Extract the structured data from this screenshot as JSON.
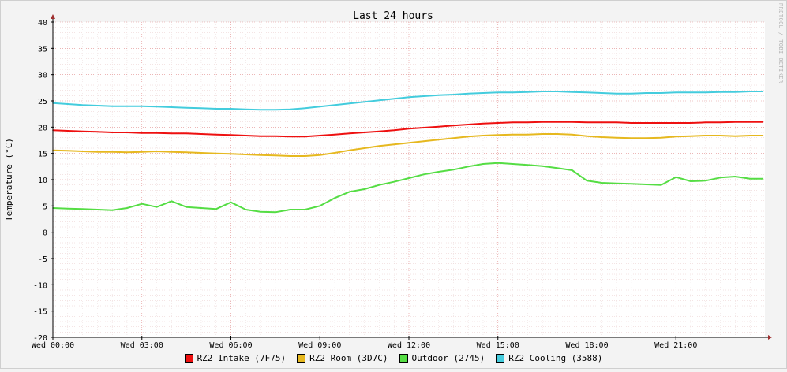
{
  "chart_data": {
    "type": "line",
    "title": "Last 24 hours",
    "ylabel": "Temperature (°C)",
    "xlabel": "",
    "watermark": "RRDTOOL / TOBI OETIKER",
    "ylim": [
      -20,
      40
    ],
    "y_ticks": [
      40,
      35,
      30,
      25,
      20,
      15,
      10,
      5,
      0,
      -5,
      -10,
      -15,
      -20
    ],
    "x_range_hours": [
      0,
      24
    ],
    "x_ticks": [
      {
        "label": "Wed 00:00",
        "hour": 0
      },
      {
        "label": "Wed 03:00",
        "hour": 3
      },
      {
        "label": "Wed 06:00",
        "hour": 6
      },
      {
        "label": "Wed 09:00",
        "hour": 9
      },
      {
        "label": "Wed 12:00",
        "hour": 12
      },
      {
        "label": "Wed 15:00",
        "hour": 15
      },
      {
        "label": "Wed 18:00",
        "hour": 18
      },
      {
        "label": "Wed 21:00",
        "hour": 21
      }
    ],
    "grid": true,
    "legend_position": "bottom",
    "x": [
      0,
      0.5,
      1,
      1.5,
      2,
      2.5,
      3,
      3.5,
      4,
      4.5,
      5,
      5.5,
      6,
      6.5,
      7,
      7.5,
      8,
      8.5,
      9,
      9.5,
      10,
      10.5,
      11,
      11.5,
      12,
      12.5,
      13,
      13.5,
      14,
      14.5,
      15,
      15.5,
      16,
      16.5,
      17,
      17.5,
      18,
      18.5,
      19,
      19.5,
      20,
      20.5,
      21,
      21.5,
      22,
      22.5,
      23,
      23.5
    ],
    "series": [
      {
        "name": "RZ2 Intake (7F75)",
        "color": "#ee1010",
        "values": [
          19.4,
          19.3,
          19.2,
          19.1,
          19.0,
          19.0,
          18.9,
          18.9,
          18.8,
          18.8,
          18.7,
          18.6,
          18.5,
          18.4,
          18.3,
          18.3,
          18.2,
          18.2,
          18.4,
          18.6,
          18.8,
          19.0,
          19.2,
          19.4,
          19.7,
          19.9,
          20.1,
          20.3,
          20.5,
          20.7,
          20.8,
          20.9,
          20.9,
          21.0,
          21.0,
          21.0,
          20.9,
          20.9,
          20.9,
          20.8,
          20.8,
          20.8,
          20.8,
          20.8,
          20.9,
          20.9,
          21.0,
          21.0
        ]
      },
      {
        "name": "RZ2 Room (3D7C)",
        "color": "#e6b81f",
        "values": [
          15.6,
          15.5,
          15.4,
          15.3,
          15.3,
          15.2,
          15.3,
          15.4,
          15.3,
          15.2,
          15.1,
          15.0,
          14.9,
          14.8,
          14.7,
          14.6,
          14.5,
          14.5,
          14.7,
          15.1,
          15.6,
          16.0,
          16.4,
          16.7,
          17.0,
          17.3,
          17.6,
          17.9,
          18.2,
          18.4,
          18.5,
          18.6,
          18.6,
          18.7,
          18.7,
          18.6,
          18.3,
          18.1,
          18.0,
          17.9,
          17.9,
          18.0,
          18.2,
          18.3,
          18.4,
          18.4,
          18.3,
          18.4
        ]
      },
      {
        "name": "Outdoor (2745)",
        "color": "#55dd44",
        "values": [
          4.6,
          4.5,
          4.4,
          4.3,
          4.2,
          4.6,
          5.4,
          4.8,
          5.9,
          4.8,
          4.6,
          4.4,
          5.7,
          4.3,
          3.9,
          3.8,
          4.3,
          4.3,
          5.0,
          6.5,
          7.7,
          8.2,
          9.0,
          9.6,
          10.3,
          11.0,
          11.5,
          11.9,
          12.5,
          13.0,
          13.2,
          13.0,
          12.8,
          12.6,
          12.2,
          11.8,
          9.8,
          9.4,
          9.3,
          9.2,
          9.1,
          9.0,
          10.5,
          9.7,
          9.8,
          10.4,
          10.6,
          10.2
        ]
      },
      {
        "name": "RZ2 Cooling (3588)",
        "color": "#44ccdd",
        "values": [
          24.6,
          24.4,
          24.2,
          24.1,
          24.0,
          24.0,
          24.0,
          23.9,
          23.8,
          23.7,
          23.6,
          23.5,
          23.5,
          23.4,
          23.3,
          23.3,
          23.4,
          23.6,
          23.9,
          24.2,
          24.5,
          24.8,
          25.1,
          25.4,
          25.7,
          25.9,
          26.1,
          26.2,
          26.4,
          26.5,
          26.6,
          26.6,
          26.7,
          26.8,
          26.8,
          26.7,
          26.6,
          26.5,
          26.4,
          26.4,
          26.5,
          26.5,
          26.6,
          26.6,
          26.6,
          26.7,
          26.7,
          26.8
        ]
      }
    ]
  }
}
